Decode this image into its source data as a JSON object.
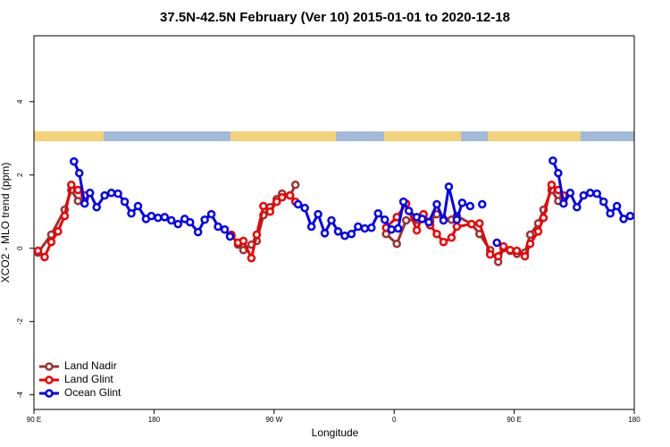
{
  "chart_data": {
    "type": "line",
    "title": "37.5N-42.5N February (Ver 10)   2015-01-01 to 2020-12-18",
    "x_label": "Longitude",
    "y_label": "XCO2 - MLO trend (ppm)",
    "xlim": [
      90,
      540
    ],
    "ylim": [
      -4.4,
      5.8
    ],
    "xticks": [
      {
        "value": 90,
        "label": "90 E"
      },
      180,
      {
        "value": 270,
        "label": "90 W"
      },
      {
        "value": 360,
        "label": "0"
      },
      {
        "value": 450,
        "label": "90 E"
      },
      {
        "value": 540,
        "label": "180"
      }
    ],
    "yticks": [
      -4,
      -2,
      0,
      2,
      4
    ],
    "legend": "bottomleft",
    "series": [
      {
        "name": "Land Nadir",
        "color": "#993333",
        "x": [
          93,
          103,
          113,
          118,
          123,
          128,
          null,
          238,
          243,
          247,
          253,
          257,
          262,
          267,
          272,
          276,
          282,
          286,
          null,
          354,
          362,
          369,
          377,
          382,
          387,
          392,
          397,
          403,
          407,
          418,
          424,
          432,
          438,
          442,
          447,
          452,
          458,
          462,
          468,
          472,
          478,
          483,
          487
        ],
        "values": [
          -0.12,
          0.37,
          1.05,
          1.59,
          1.29,
          1.34,
          null,
          0.37,
          0.1,
          -0.05,
          0.1,
          0.2,
          0.9,
          1.12,
          1.34,
          1.49,
          1.44,
          1.73,
          null,
          0.39,
          0.12,
          0.76,
          0.78,
          0.88,
          0.73,
          0.93,
          0.8,
          0.78,
          0.88,
          0.66,
          0.39,
          -0.05,
          -0.37,
          0,
          -0.07,
          -0.15,
          -0.12,
          0.37,
          0.68,
          1.05,
          1.59,
          1.29,
          1.34
        ]
      },
      {
        "name": "Land Glint",
        "color": "#ee0000",
        "x": [
          93,
          98,
          103,
          108,
          113,
          118,
          123,
          128,
          null,
          238,
          243,
          247,
          253,
          257,
          262,
          267,
          272,
          276,
          282,
          286,
          null,
          354,
          362,
          369,
          377,
          382,
          387,
          392,
          397,
          403,
          407,
          418,
          424,
          432,
          438,
          442,
          447,
          452,
          458,
          462,
          468,
          472,
          478,
          483,
          487
        ],
        "values": [
          -0.07,
          -0.24,
          0.17,
          0.46,
          0.88,
          1.73,
          1.59,
          1.44,
          null,
          0.34,
          0.15,
          0.2,
          -0.27,
          0.37,
          1.15,
          1.0,
          1.27,
          1.39,
          1.44,
          1.27,
          null,
          0.56,
          0.85,
          1.22,
          0.49,
          0.93,
          0.63,
          0.39,
          0.17,
          0.29,
          0.59,
          0.66,
          0.68,
          -0.17,
          -0.22,
          0.05,
          -0.05,
          -0.07,
          -0.22,
          0.12,
          0.46,
          0.83,
          1.73,
          1.59,
          1.44
        ]
      },
      {
        "name": "Ocean Glint",
        "color": "#0000ee",
        "x": [
          120,
          124,
          128,
          132,
          137,
          143,
          148,
          153,
          158,
          163,
          168,
          174,
          178,
          183,
          188,
          193,
          198,
          203,
          207,
          213,
          218,
          223,
          228,
          233,
          237,
          null,
          288,
          293,
          298,
          303,
          308,
          313,
          318,
          323,
          328,
          333,
          338,
          343,
          348,
          353,
          358,
          363,
          367,
          371,
          377,
          381,
          386,
          392,
          397,
          401,
          407,
          411,
          417,
          null,
          426,
          null,
          437,
          null,
          479,
          483,
          487,
          492,
          497,
          502,
          507,
          512,
          517,
          522,
          527,
          532,
          537
        ],
        "values": [
          2.37,
          2.05,
          1.22,
          1.51,
          1.12,
          1.44,
          1.51,
          1.49,
          1.27,
          0.95,
          1.15,
          0.8,
          0.88,
          0.83,
          0.85,
          0.76,
          0.66,
          0.8,
          0.71,
          0.44,
          0.78,
          0.93,
          0.59,
          0.51,
          0.32,
          null,
          1.2,
          1.1,
          0.59,
          0.93,
          0.41,
          0.76,
          0.46,
          0.34,
          0.39,
          0.59,
          0.54,
          0.56,
          0.95,
          0.78,
          0.51,
          0.54,
          1.27,
          1.02,
          0.85,
          0.8,
          0.71,
          1.2,
          0.76,
          1.68,
          0.78,
          1.24,
          1.15,
          null,
          1.2,
          null,
          0.15,
          null,
          2.39,
          2.05,
          1.22,
          1.51,
          1.12,
          1.44,
          1.51,
          1.49,
          1.27,
          0.95,
          1.15,
          0.8,
          0.88
        ]
      }
    ]
  }
}
